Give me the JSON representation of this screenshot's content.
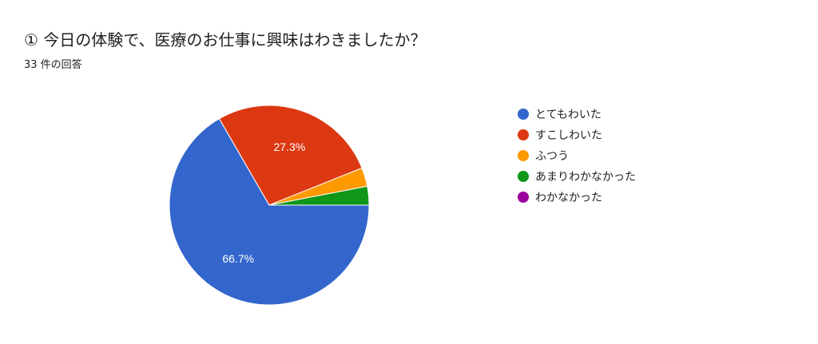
{
  "title": "① 今日の体験で、医療のお仕事に興味はわきましたか？",
  "response_count": "33 件の回答",
  "chart_data": {
    "type": "pie",
    "total": 33,
    "categories": [
      "とてもわいた",
      "すこしわいた",
      "ふつう",
      "あまりわかなかった",
      "わかなかった"
    ],
    "values": [
      22,
      9,
      1,
      1,
      0
    ],
    "percent_labels": [
      "66.7%",
      "27.3%",
      "",
      "",
      ""
    ],
    "colors": [
      "#3366cc",
      "#dc3912",
      "#ff9900",
      "#109618",
      "#990099"
    ],
    "legend_position": "right"
  }
}
